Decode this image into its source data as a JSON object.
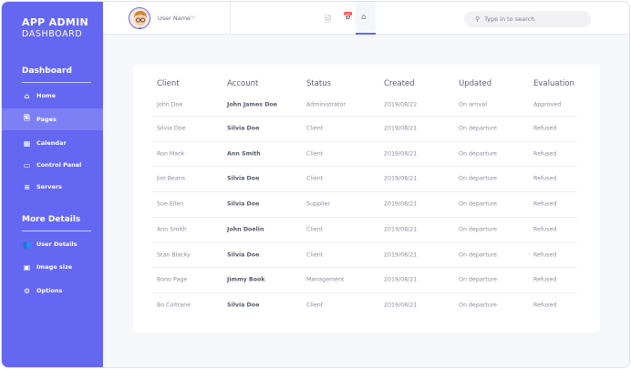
{
  "sidebar": {
    "title_line1": "APP ADMIN",
    "title_line2": "DASHBOARD",
    "section1": "Dashboard",
    "section2": "More Details",
    "items": [
      {
        "label": "Home",
        "icon": "home-icon"
      },
      {
        "label": "Pages",
        "icon": "page-icon"
      },
      {
        "label": "Calendar",
        "icon": "calendar-icon"
      },
      {
        "label": "Control Panel",
        "icon": "window-icon"
      },
      {
        "label": "Servers",
        "icon": "server-icon"
      }
    ],
    "items2": [
      {
        "label": "User Details",
        "icon": "users-icon"
      },
      {
        "label": "Image size",
        "icon": "image-icon"
      },
      {
        "label": "Options",
        "icon": "gear-icon"
      }
    ],
    "active": "Pages",
    "color": "#6467f2"
  },
  "header": {
    "user_name": "User Name",
    "search_placeholder": "Type in to search",
    "active_tab": "home"
  },
  "table": {
    "columns": [
      "Client",
      "Account",
      "Status",
      "Created",
      "Updated",
      "Evaluation"
    ],
    "rows": [
      [
        "John Doe",
        "John James Doe",
        "Administrator",
        "2019/08/22",
        "On arrival",
        "Approved"
      ],
      [
        "Silvia Doe",
        "Silvia Doe",
        "Client",
        "2019/08/21",
        "On departure",
        "Refused"
      ],
      [
        "Ron Mack",
        "Ann Smith",
        "Client",
        "2019/08/21",
        "On departure",
        "Refused"
      ],
      [
        "Jim Beans",
        "Silvia Doe",
        "Client",
        "2019/08/21",
        "On departure",
        "Refused"
      ],
      [
        "Sue Ellen",
        "Silvia Doe",
        "Supplier",
        "2019/08/21",
        "On departure",
        "Refused"
      ],
      [
        "Ann Smith",
        "John Doelin",
        "Client",
        "2019/08/21",
        "On departure",
        "Refused"
      ],
      [
        "Stan Blacky",
        "Silvia Doe",
        "Client",
        "2019/08/21",
        "On departure",
        "Refused"
      ],
      [
        "Bono Page",
        "Jimmy Book",
        "Management",
        "2019/08/21",
        "On departure",
        "Refused"
      ],
      [
        "Bo Coltrane",
        "Silvia Doe",
        "Client",
        "2019/08/21",
        "On departure",
        "Refused"
      ]
    ]
  }
}
